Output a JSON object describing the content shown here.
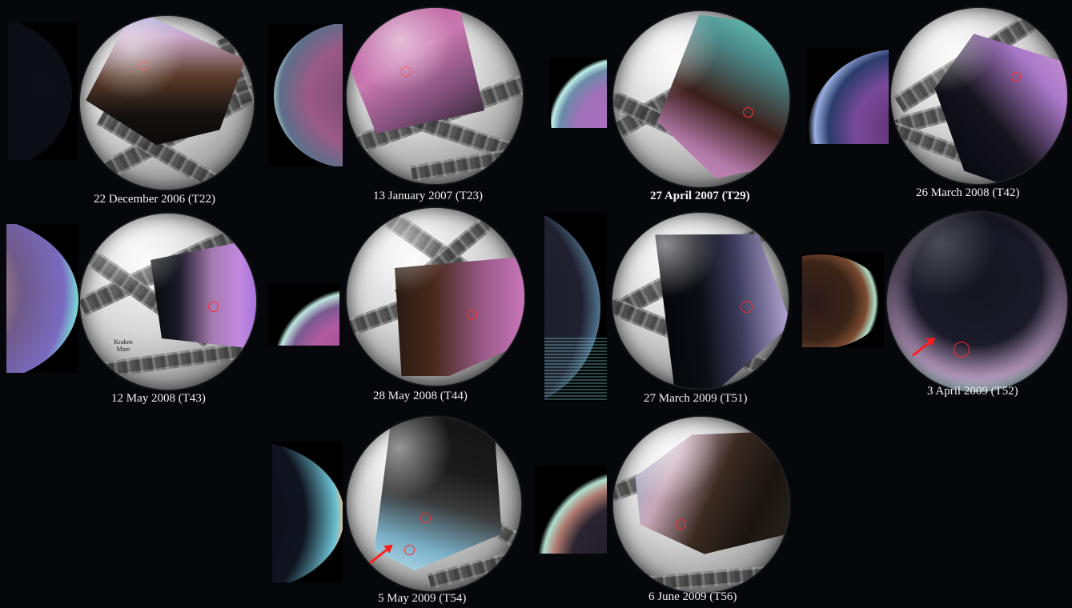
{
  "panels": [
    {
      "id": "t22",
      "label": "22 December 2006 (T22)"
    },
    {
      "id": "t23",
      "label": "13 January 2007 (T23)"
    },
    {
      "id": "t29",
      "label": "27 April 2007 (T29)"
    },
    {
      "id": "t42",
      "label": "26 March 2008 (T42)"
    },
    {
      "id": "t43",
      "label": "12 May 2008 (T43)",
      "annotation": "Kraken\nMare"
    },
    {
      "id": "t44",
      "label": "28 May 2008 (T44)"
    },
    {
      "id": "t51",
      "label": "27 March 2009 (T51)"
    },
    {
      "id": "t52",
      "label": "3 April 2009 (T52)"
    },
    {
      "id": "t54",
      "label": "5 May 2009 (T54)"
    },
    {
      "id": "t56",
      "label": "6 June 2009 (T56)"
    }
  ],
  "colors": {
    "background": "#06070b",
    "marker": "#ff2a2a",
    "label_text": "#f2f2f2"
  }
}
